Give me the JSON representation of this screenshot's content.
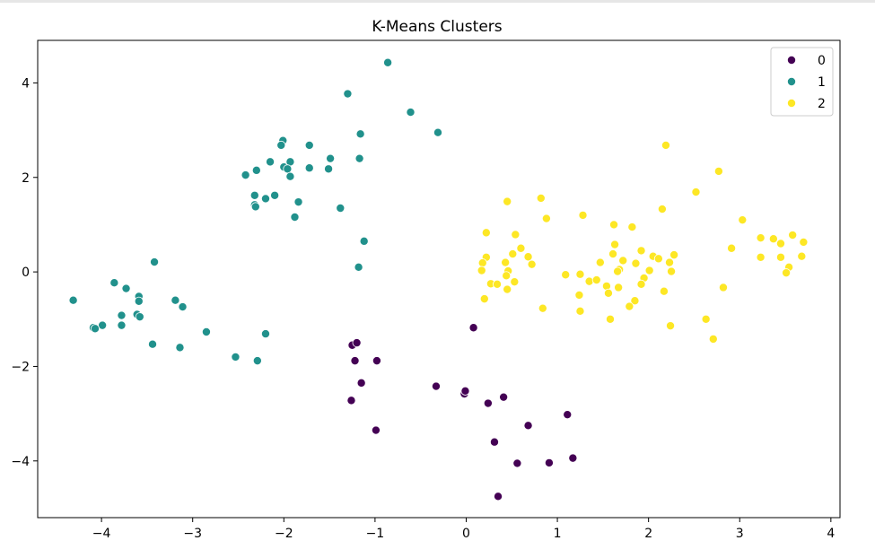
{
  "chart_data": {
    "type": "scatter",
    "title": "K-Means Clusters",
    "xlabel": "",
    "ylabel": "",
    "xlim": [
      -4.7,
      4.1
    ],
    "ylim": [
      -5.2,
      4.9
    ],
    "xticks": [
      -4,
      -3,
      -2,
      -1,
      0,
      1,
      2,
      3,
      4
    ],
    "yticks": [
      -4,
      -2,
      0,
      2,
      4
    ],
    "grid": false,
    "legend_position": "top-right",
    "series": [
      {
        "name": "0",
        "color": "#440154",
        "points": [
          [
            0.08,
            -1.18
          ],
          [
            -1.25,
            -1.55
          ],
          [
            -1.2,
            -1.5
          ],
          [
            -1.22,
            -1.88
          ],
          [
            -0.98,
            -1.88
          ],
          [
            -1.15,
            -2.35
          ],
          [
            -1.26,
            -2.72
          ],
          [
            -0.33,
            -2.42
          ],
          [
            -0.02,
            -2.58
          ],
          [
            -0.01,
            -2.52
          ],
          [
            0.24,
            -2.78
          ],
          [
            0.41,
            -2.65
          ],
          [
            0.68,
            -3.25
          ],
          [
            1.11,
            -3.02
          ],
          [
            -0.99,
            -3.35
          ],
          [
            0.31,
            -3.6
          ],
          [
            0.56,
            -4.05
          ],
          [
            0.91,
            -4.04
          ],
          [
            1.17,
            -3.94
          ],
          [
            0.35,
            -4.75
          ]
        ]
      },
      {
        "name": "1",
        "color": "#21918c",
        "points": [
          [
            -0.86,
            4.43
          ],
          [
            -1.3,
            3.77
          ],
          [
            -0.61,
            3.38
          ],
          [
            -0.31,
            2.95
          ],
          [
            -1.16,
            2.92
          ],
          [
            -2.01,
            2.78
          ],
          [
            -2.03,
            2.68
          ],
          [
            -1.72,
            2.68
          ],
          [
            -1.49,
            2.4
          ],
          [
            -1.17,
            2.4
          ],
          [
            -2.15,
            2.33
          ],
          [
            -1.93,
            2.33
          ],
          [
            -2.0,
            2.22
          ],
          [
            -1.96,
            2.18
          ],
          [
            -1.72,
            2.2
          ],
          [
            -1.51,
            2.18
          ],
          [
            -2.3,
            2.15
          ],
          [
            -2.42,
            2.05
          ],
          [
            -1.93,
            2.02
          ],
          [
            -2.32,
            1.62
          ],
          [
            -2.2,
            1.55
          ],
          [
            -2.1,
            1.62
          ],
          [
            -1.84,
            1.48
          ],
          [
            -2.32,
            1.42
          ],
          [
            -2.31,
            1.38
          ],
          [
            -1.38,
            1.35
          ],
          [
            -1.88,
            1.16
          ],
          [
            -1.12,
            0.65
          ],
          [
            -1.18,
            0.1
          ],
          [
            -3.42,
            0.21
          ],
          [
            -3.86,
            -0.23
          ],
          [
            -3.73,
            -0.35
          ],
          [
            -4.31,
            -0.6
          ],
          [
            -3.59,
            -0.52
          ],
          [
            -3.59,
            -0.62
          ],
          [
            -3.19,
            -0.6
          ],
          [
            -3.11,
            -0.74
          ],
          [
            -3.78,
            -0.92
          ],
          [
            -3.61,
            -0.9
          ],
          [
            -3.58,
            -0.95
          ],
          [
            -3.78,
            -1.13
          ],
          [
            -3.99,
            -1.13
          ],
          [
            -4.09,
            -1.18
          ],
          [
            -4.07,
            -1.2
          ],
          [
            -2.85,
            -1.27
          ],
          [
            -2.2,
            -1.31
          ],
          [
            -3.44,
            -1.53
          ],
          [
            -3.14,
            -1.6
          ],
          [
            -2.53,
            -1.8
          ],
          [
            -2.29,
            -1.88
          ]
        ]
      },
      {
        "name": "2",
        "color": "#fde725",
        "points": [
          [
            2.19,
            2.68
          ],
          [
            2.77,
            2.13
          ],
          [
            2.52,
            1.69
          ],
          [
            0.45,
            1.49
          ],
          [
            0.82,
            1.56
          ],
          [
            1.28,
            1.2
          ],
          [
            2.15,
            1.33
          ],
          [
            0.88,
            1.13
          ],
          [
            3.03,
            1.1
          ],
          [
            1.62,
            1.0
          ],
          [
            1.82,
            0.95
          ],
          [
            0.22,
            0.83
          ],
          [
            0.54,
            0.79
          ],
          [
            3.23,
            0.72
          ],
          [
            3.37,
            0.7
          ],
          [
            3.58,
            0.78
          ],
          [
            3.45,
            0.6
          ],
          [
            3.7,
            0.63
          ],
          [
            1.63,
            0.58
          ],
          [
            0.6,
            0.5
          ],
          [
            2.91,
            0.5
          ],
          [
            1.92,
            0.45
          ],
          [
            0.51,
            0.38
          ],
          [
            1.61,
            0.38
          ],
          [
            2.05,
            0.33
          ],
          [
            2.28,
            0.36
          ],
          [
            0.68,
            0.32
          ],
          [
            0.22,
            0.31
          ],
          [
            3.23,
            0.31
          ],
          [
            3.45,
            0.31
          ],
          [
            3.68,
            0.33
          ],
          [
            0.43,
            0.2
          ],
          [
            0.72,
            0.16
          ],
          [
            1.47,
            0.2
          ],
          [
            1.72,
            0.24
          ],
          [
            0.18,
            0.19
          ],
          [
            3.54,
            0.1
          ],
          [
            2.23,
            0.2
          ],
          [
            1.86,
            0.18
          ],
          [
            2.11,
            0.28
          ],
          [
            0.17,
            0.03
          ],
          [
            0.46,
            0.02
          ],
          [
            1.09,
            -0.06
          ],
          [
            1.25,
            -0.05
          ],
          [
            1.68,
            0.05
          ],
          [
            1.66,
            0.01
          ],
          [
            2.01,
            0.03
          ],
          [
            2.25,
            0.01
          ],
          [
            3.51,
            -0.02
          ],
          [
            0.44,
            -0.08
          ],
          [
            1.95,
            -0.13
          ],
          [
            1.35,
            -0.2
          ],
          [
            1.43,
            -0.17
          ],
          [
            0.27,
            -0.25
          ],
          [
            0.34,
            -0.26
          ],
          [
            0.53,
            -0.21
          ],
          [
            1.54,
            -0.3
          ],
          [
            1.67,
            -0.33
          ],
          [
            1.92,
            -0.26
          ],
          [
            2.17,
            -0.41
          ],
          [
            0.45,
            -0.37
          ],
          [
            1.56,
            -0.45
          ],
          [
            1.24,
            -0.49
          ],
          [
            0.2,
            -0.57
          ],
          [
            1.85,
            -0.61
          ],
          [
            1.79,
            -0.73
          ],
          [
            2.82,
            -0.33
          ],
          [
            0.84,
            -0.77
          ],
          [
            1.25,
            -0.83
          ],
          [
            1.58,
            -1.0
          ],
          [
            2.63,
            -1.0
          ],
          [
            2.24,
            -1.14
          ],
          [
            2.71,
            -1.42
          ]
        ]
      }
    ]
  }
}
